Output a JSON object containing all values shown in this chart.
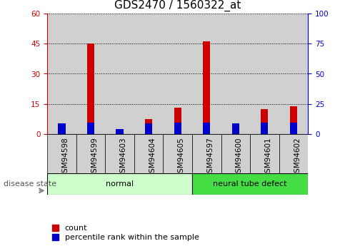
{
  "title": "GDS2470 / 1560322_at",
  "samples": [
    "GSM94598",
    "GSM94599",
    "GSM94603",
    "GSM94604",
    "GSM94605",
    "GSM94597",
    "GSM94600",
    "GSM94601",
    "GSM94602"
  ],
  "count_values": [
    4.5,
    45.0,
    2.5,
    7.5,
    13.0,
    46.0,
    5.0,
    12.5,
    14.0
  ],
  "percentile_values": [
    9.0,
    9.5,
    4.0,
    9.0,
    9.5,
    9.5,
    9.0,
    9.5,
    9.5
  ],
  "count_color": "#cc0000",
  "percentile_color": "#0000cc",
  "left_ylim": [
    0,
    60
  ],
  "right_ylim": [
    0,
    100
  ],
  "left_yticks": [
    0,
    15,
    30,
    45,
    60
  ],
  "right_yticks": [
    0,
    25,
    50,
    75,
    100
  ],
  "groups": [
    {
      "label": "normal",
      "start": 0,
      "end": 5,
      "color": "#ccffcc"
    },
    {
      "label": "neural tube defect",
      "start": 5,
      "end": 9,
      "color": "#44dd44"
    }
  ],
  "disease_state_label": "disease state",
  "legend_items": [
    {
      "label": "count",
      "color": "#cc0000"
    },
    {
      "label": "percentile rank within the sample",
      "color": "#0000cc"
    }
  ],
  "bar_width": 0.25,
  "col_bg_color": "#d0d0d0",
  "grid_color": "#000000",
  "title_fontsize": 11,
  "tick_fontsize": 7.5,
  "label_fontsize": 8
}
